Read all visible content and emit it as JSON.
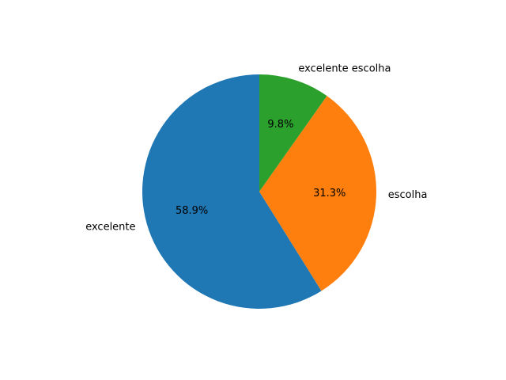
{
  "chart_data": {
    "type": "pie",
    "categories": [
      "excelente",
      "escolha",
      "excelente escolha"
    ],
    "values": [
      58.9,
      31.3,
      9.8
    ],
    "percent_labels": [
      "58.9%",
      "31.3%",
      "9.8%"
    ],
    "colors": [
      "#1f77b4",
      "#ff7f0e",
      "#2ca02c"
    ],
    "start_angle_deg": 90,
    "direction": "counterclockwise",
    "legend": "none"
  }
}
